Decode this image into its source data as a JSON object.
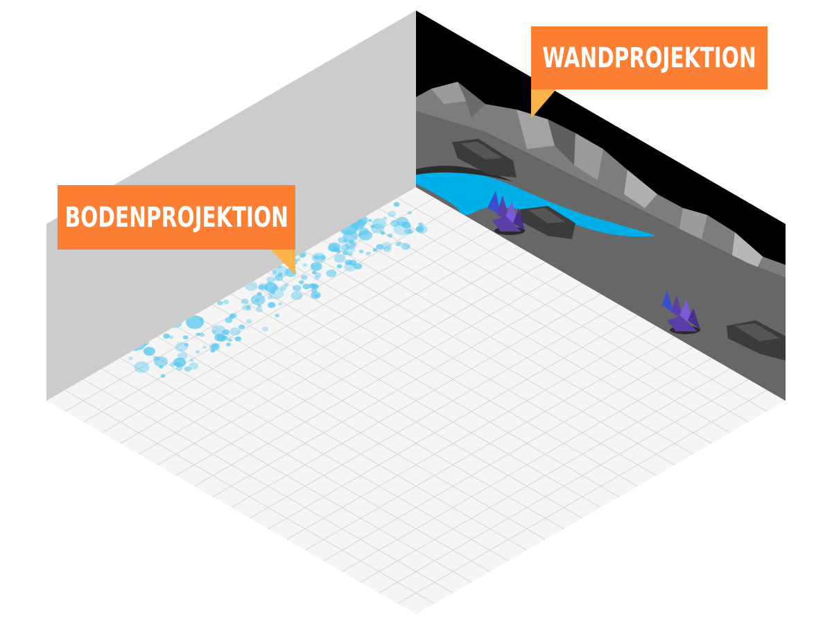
{
  "labels": {
    "floor": "BODENPROJEKTION",
    "wall": "WANDPROJEKTION"
  },
  "colors": {
    "callout": "#fc7f33",
    "callout_tail": "#fcb34a",
    "left_wall": "#cccccc",
    "floor": "#f5f5f5",
    "grid": "#d6d6d6",
    "wall_sky": "#000000",
    "wall_ground": "#6a6a6a",
    "mountains": "#8a8a8a",
    "river": "#00aee8",
    "bubbles": "#5ac8f0",
    "crystals": "#5b3fa8"
  },
  "icons": {
    "floor_projection": "water-bubbles-icon",
    "wall_projection": "mountain-landscape-icon"
  }
}
